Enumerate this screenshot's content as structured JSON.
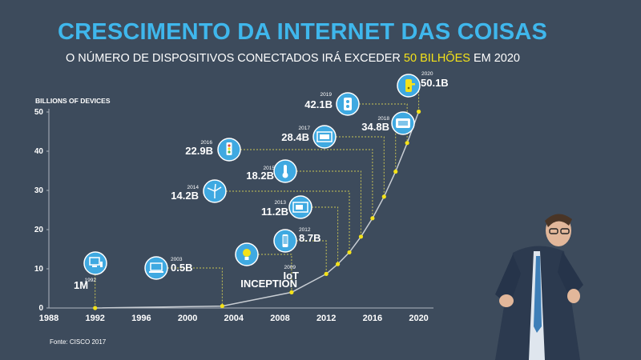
{
  "header": {
    "title": "CRESCIMENTO DA INTERNET DAS COISAS",
    "subtitle_pre": "O NÚMERO DE DISPOSITIVOS CONECTADOS IRÁ EXCEDER ",
    "subtitle_highlight": "50 BILHÕES",
    "subtitle_post": " EM 2020"
  },
  "source": "Fonte: CISCO 2017",
  "colors": {
    "background": "#3d4b5c",
    "title": "#3fb7ec",
    "highlight": "#f4e219",
    "icon_circle": "#3fa9e1",
    "curve": "#c9ced4",
    "point": "#f4e219"
  },
  "chart_data": {
    "type": "line",
    "ylabel": "BILLIONS OF DEVICES",
    "xlabel": "",
    "ylim": [
      0,
      50
    ],
    "xlim": [
      1988,
      2021
    ],
    "yticks": [
      0,
      10,
      20,
      30,
      40,
      50
    ],
    "xticks": [
      1988,
      1992,
      1996,
      2000,
      2004,
      2008,
      2012,
      2016,
      2020
    ],
    "grid": false,
    "series": [
      {
        "values": [
          {
            "x": 1992,
            "y": 0.001
          },
          {
            "x": 2003,
            "y": 0.5
          },
          {
            "x": 2009,
            "y": 4.0
          },
          {
            "x": 2012,
            "y": 8.7
          },
          {
            "x": 2013,
            "y": 11.2
          },
          {
            "x": 2014,
            "y": 14.2
          },
          {
            "x": 2015,
            "y": 18.2
          },
          {
            "x": 2016,
            "y": 22.9
          },
          {
            "x": 2017,
            "y": 28.4
          },
          {
            "x": 2018,
            "y": 34.8
          },
          {
            "x": 2019,
            "y": 42.1
          },
          {
            "x": 2020,
            "y": 50.1
          }
        ]
      }
    ],
    "annotations": [
      {
        "year": "1992",
        "value": "1M",
        "icon": "computer-icon"
      },
      {
        "year": "2003",
        "value": "0.5B",
        "icon": "laptop-icon"
      },
      {
        "year": "2009",
        "value": "IoT",
        "value2": "INCEPTION",
        "icon": "lightbulb-icon"
      },
      {
        "year": "2012",
        "value": "8.7B",
        "icon": "smartphone-icon"
      },
      {
        "year": "2013",
        "value": "11.2B",
        "icon": "microwave-icon"
      },
      {
        "year": "2014",
        "value": "14.2B",
        "icon": "wind-turbine-icon"
      },
      {
        "year": "2015",
        "value": "18.2B",
        "icon": "thermometer-icon"
      },
      {
        "year": "2016",
        "value": "22.9B",
        "icon": "traffic-light-icon"
      },
      {
        "year": "2017",
        "value": "28.4B",
        "icon": "monitor-icon"
      },
      {
        "year": "2018",
        "value": "34.8B",
        "icon": "tablet-icon"
      },
      {
        "year": "2019",
        "value": "42.1B",
        "icon": "speaker-icon"
      },
      {
        "year": "2020",
        "value": "50.1B",
        "icon": "door-lock-icon"
      }
    ]
  }
}
